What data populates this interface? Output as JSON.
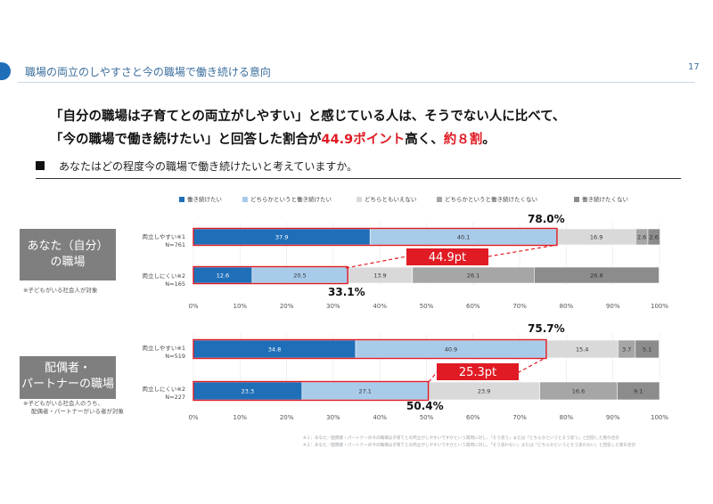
{
  "header": {
    "title": "職場の両立のしやすさと今の職場で働き続ける意向",
    "page_number": "17"
  },
  "headline": {
    "line1": "「自分の職場は子育てとの両立がしやすい」と感じている人は、そうでない人に比べて、",
    "line2_a": "「今の職場で働き続けたい」と回答した割合が",
    "line2_b": "44.9ポイント",
    "line2_c": "高く、",
    "line2_d": "約８割",
    "line2_e": "。"
  },
  "question": "あなたはどの程度今の職場で働き続けたいと考えていますか。",
  "colors": {
    "accent": "#1f6fb8",
    "highlight": "#e01b24"
  },
  "chart_data": {
    "type": "bar",
    "stacked": true,
    "orientation": "horizontal",
    "legend": [
      "働き続けたい",
      "どちらかというと働き続けたい",
      "どちらともいえない",
      "どちらかというと働き続けたくない",
      "働き続けたくない"
    ],
    "legend_colors": [
      "#1f6fb8",
      "#a9cbea",
      "#d9d9d9",
      "#a6a6a6",
      "#8c8c8c"
    ],
    "xlim": [
      0,
      100
    ],
    "x_ticks": [
      "0%",
      "10%",
      "20%",
      "30%",
      "40%",
      "50%",
      "60%",
      "70%",
      "80%",
      "90%",
      "100%"
    ],
    "groups": [
      {
        "label_line1": "あなた（自分）",
        "label_line2": "の職場",
        "note_line1": "※子どもがいる社会人が対象",
        "note_line2": "",
        "rows": [
          {
            "label": "両立しやすい※1",
            "n": "N=761",
            "values": [
              37.9,
              40.1,
              16.9,
              2.6,
              2.6
            ]
          },
          {
            "label": "両立しにくい※2",
            "n": "N=165",
            "values": [
              12.6,
              20.5,
              13.9,
              26.1,
              26.8
            ]
          }
        ],
        "sum_top": "78.0%",
        "sum_bottom": "33.1%",
        "diff": "44.9pt"
      },
      {
        "label_line1": "配偶者・",
        "label_line2": "パートナーの職場",
        "note_line1": "※子どもがいる社会人のうち、",
        "note_line2": "配偶者・パートナーがいる者が対象",
        "rows": [
          {
            "label": "両立しやすい※1",
            "n": "N=519",
            "values": [
              34.8,
              40.9,
              15.4,
              3.7,
              5.1
            ]
          },
          {
            "label": "両立しにくい※2",
            "n": "N=227",
            "values": [
              23.3,
              27.1,
              23.9,
              16.6,
              9.1
            ]
          }
        ],
        "sum_top": "75.7%",
        "sum_bottom": "50.4%",
        "diff": "25.3pt"
      }
    ]
  },
  "footnotes": [
    "※１：あなた／配偶者・パートナーの今の職場は子育てとの両立がしやすいですかという質問に対し、「そう思う」または「どちらかというとそう思う」と回答した者の合計",
    "※２：あなた／配偶者・パートナーの今の職場は子育てとの両立がしやすいですかという質問に対し、「そう思わない」または「どちらかというとそう思わない」と回答した者の合計"
  ]
}
